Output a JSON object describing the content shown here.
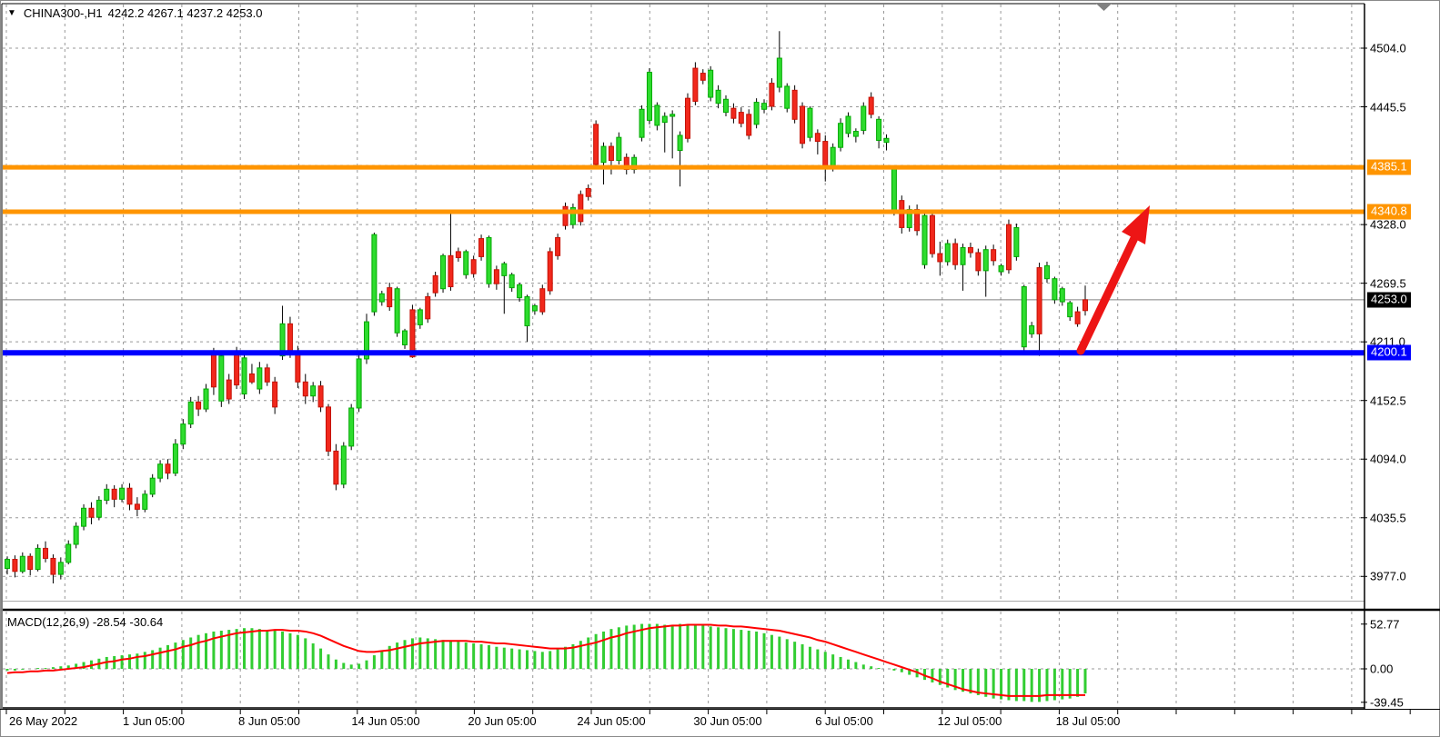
{
  "header": {
    "symbol_period": "CHINA300-,H1",
    "ohlc_text": "4242.2 4267.1 4237.2 4253.0",
    "dropdown_icon": "symbol-marker"
  },
  "price_axis": {
    "labels": [
      "4504.0",
      "4445.5",
      "4328.0",
      "4269.5",
      "4211.0",
      "4152.5",
      "4094.0",
      "4035.5",
      "3977.0"
    ],
    "gridline_prices": [
      4504.0,
      4445.5,
      4387.0,
      4328.0,
      4269.5,
      4211.0,
      4152.5,
      4094.0,
      4035.5,
      3977.0
    ]
  },
  "time_axis": {
    "labels": [
      "26 May 2022",
      "1 Jun 05:00",
      "8 Jun 05:00",
      "14 Jun 05:00",
      "20 Jun 05:00",
      "24 Jun 05:00",
      "30 Jun 05:00",
      "6 Jul 05:00",
      "12 Jul 05:00",
      "18 Jul 05:00"
    ]
  },
  "horizontal_lines": [
    {
      "name": "resistance-upper",
      "price": 4385.1,
      "label": "4385.1",
      "color": "#FF9500",
      "thickness": 5
    },
    {
      "name": "resistance-lower",
      "price": 4340.8,
      "label": "4340.8",
      "color": "#FF9500",
      "thickness": 5
    },
    {
      "name": "support",
      "price": 4200.1,
      "label": "4200.1",
      "color": "#0000FF",
      "thickness": 6
    }
  ],
  "current_price": {
    "value": "4253.0",
    "price": 4253.0,
    "badge_bg": "#000000",
    "line_color": "#808080"
  },
  "annotation_arrow": {
    "direction": "up",
    "color": "#ED1515"
  },
  "macd_panel": {
    "label": "MACD(12,26,9) -28.54 -30.64",
    "scale_labels": [
      "52.77",
      "0.00",
      "-39.45"
    ],
    "histogram_color": "#32CD32",
    "signal_color": "#FF0000"
  },
  "colors": {
    "bull_body": "#2EDC2E",
    "bull_border": "#00A800",
    "bear_body": "#F1281C",
    "bear_border": "#C41004",
    "wick": "#000000",
    "grid": "#989898",
    "axis": "#000000"
  },
  "chart_data": {
    "type": "candlestick",
    "symbol": "CHINA300-",
    "timeframe": "H1",
    "title": "CHINA300-,H1",
    "current_bar": {
      "open": 4242.2,
      "high": 4267.1,
      "low": 4237.2,
      "close": 4253.0
    },
    "y_axis": {
      "min": 3955,
      "max": 4525,
      "ticks": [
        4504.0,
        4445.5,
        4387.0,
        4328.0,
        4269.5,
        4211.0,
        4152.5,
        4094.0,
        4035.5,
        3977.0
      ]
    },
    "x_labels": [
      "26 May 2022",
      "1 Jun 05:00",
      "8 Jun 05:00",
      "14 Jun 05:00",
      "20 Jun 05:00",
      "24 Jun 05:00",
      "30 Jun 05:00",
      "6 Jul 05:00",
      "12 Jul 05:00",
      "18 Jul 05:00"
    ],
    "levels": {
      "resistance": [
        4385.1,
        4340.8
      ],
      "support": [
        4200.1
      ],
      "bid": 4253.0
    },
    "candles": [
      [
        3985,
        3997,
        3979,
        3994
      ],
      [
        3994,
        3998,
        3976,
        3982
      ],
      [
        3982,
        4001,
        3980,
        3997
      ],
      [
        3997,
        4000,
        3978,
        3984
      ],
      [
        3984,
        4009,
        3982,
        4005
      ],
      [
        4005,
        4012,
        3991,
        3995
      ],
      [
        3995,
        3999,
        3970,
        3979
      ],
      [
        3979,
        3996,
        3974,
        3991
      ],
      [
        3991,
        4013,
        3989,
        4009
      ],
      [
        4009,
        4031,
        4005,
        4027
      ],
      [
        4027,
        4049,
        4023,
        4045
      ],
      [
        4045,
        4051,
        4029,
        4036
      ],
      [
        4036,
        4057,
        4033,
        4053
      ],
      [
        4053,
        4069,
        4049,
        4064
      ],
      [
        4064,
        4068,
        4046,
        4054
      ],
      [
        4054,
        4069,
        4051,
        4065
      ],
      [
        4065,
        4070,
        4043,
        4049
      ],
      [
        4049,
        4056,
        4037,
        4044
      ],
      [
        4044,
        4063,
        4041,
        4059
      ],
      [
        4059,
        4079,
        4056,
        4075
      ],
      [
        4075,
        4093,
        4071,
        4089
      ],
      [
        4089,
        4094,
        4074,
        4080
      ],
      [
        4080,
        4114,
        4077,
        4109
      ],
      [
        4109,
        4134,
        4104,
        4129
      ],
      [
        4129,
        4156,
        4125,
        4151
      ],
      [
        4151,
        4157,
        4137,
        4144
      ],
      [
        4144,
        4169,
        4141,
        4164
      ],
      [
        4198,
        4205,
        4158,
        4166
      ],
      [
        4152,
        4200,
        4146,
        4197
      ],
      [
        4173,
        4179,
        4149,
        4154
      ],
      [
        4200,
        4206,
        4164,
        4168
      ],
      [
        4159,
        4201,
        4154,
        4195
      ],
      [
        4179,
        4189,
        4169,
        4171
      ],
      [
        4164,
        4191,
        4159,
        4185
      ],
      [
        4185,
        4189,
        4167,
        4171
      ],
      [
        4171,
        4176,
        4139,
        4146
      ],
      [
        4197,
        4247,
        4193,
        4229
      ],
      [
        4229,
        4236,
        4195,
        4200
      ],
      [
        4200,
        4207,
        4165,
        4171
      ],
      [
        4171,
        4179,
        4149,
        4157
      ],
      [
        4157,
        4171,
        4151,
        4167
      ],
      [
        4167,
        4172,
        4141,
        4146
      ],
      [
        4146,
        4149,
        4097,
        4102
      ],
      [
        4102,
        4109,
        4063,
        4069
      ],
      [
        4069,
        4111,
        4065,
        4107
      ],
      [
        4107,
        4149,
        4103,
        4145
      ],
      [
        4145,
        4199,
        4141,
        4194
      ],
      [
        4194,
        4239,
        4189,
        4231
      ],
      [
        4241,
        4320,
        4237,
        4318
      ],
      [
        4251,
        4262,
        4247,
        4259
      ],
      [
        4265,
        4270,
        4242,
        4246
      ],
      [
        4220,
        4266,
        4216,
        4264
      ],
      [
        4208,
        4224,
        4204,
        4222
      ],
      [
        4243,
        4248,
        4195,
        4196
      ],
      [
        4228,
        4245,
        4224,
        4243
      ],
      [
        4256,
        4260,
        4230,
        4234
      ],
      [
        4277,
        4281,
        4256,
        4260
      ],
      [
        4264,
        4299,
        4260,
        4297
      ],
      [
        4297,
        4339,
        4262,
        4266
      ],
      [
        4301,
        4305,
        4291,
        4295
      ],
      [
        4278,
        4303,
        4274,
        4301
      ],
      [
        4293,
        4297,
        4275,
        4279
      ],
      [
        4314,
        4318,
        4292,
        4296
      ],
      [
        4269,
        4317,
        4265,
        4315
      ],
      [
        4283,
        4287,
        4263,
        4269
      ],
      [
        4277,
        4291,
        4239,
        4289
      ],
      [
        4265,
        4280,
        4261,
        4278
      ],
      [
        4255,
        4270,
        4251,
        4268
      ],
      [
        4227,
        4258,
        4211,
        4256
      ],
      [
        4242,
        4249,
        4238,
        4247
      ],
      [
        4264,
        4268,
        4238,
        4241
      ],
      [
        4301,
        4305,
        4258,
        4262
      ],
      [
        4315,
        4319,
        4293,
        4297
      ],
      [
        4346,
        4350,
        4323,
        4327
      ],
      [
        4328,
        4349,
        4324,
        4345
      ],
      [
        4358,
        4362,
        4327,
        4331
      ],
      [
        4364,
        4368,
        4352,
        4356
      ],
      [
        4428,
        4432,
        4384,
        4388
      ],
      [
        4390,
        4410,
        4368,
        4406
      ],
      [
        4406,
        4410,
        4378,
        4392
      ],
      [
        4392,
        4420,
        4388,
        4415
      ],
      [
        4395,
        4399,
        4378,
        4383
      ],
      [
        4383,
        4398,
        4379,
        4395
      ],
      [
        4415,
        4447,
        4411,
        4443
      ],
      [
        4432,
        4484,
        4428,
        4480
      ],
      [
        4427,
        4450,
        4422,
        4447
      ],
      [
        4430,
        4440,
        4400,
        4436
      ],
      [
        4436,
        4442,
        4394,
        4438
      ],
      [
        4402,
        4421,
        4366,
        4417
      ],
      [
        4454,
        4459,
        4410,
        4414
      ],
      [
        4484,
        4490,
        4447,
        4451
      ],
      [
        4479,
        4483,
        4468,
        4472
      ],
      [
        4455,
        4486,
        4451,
        4482
      ],
      [
        4449,
        4467,
        4444,
        4462
      ],
      [
        4440,
        4457,
        4436,
        4453
      ],
      [
        4444,
        4449,
        4429,
        4434
      ],
      [
        4440,
        4445,
        4425,
        4429
      ],
      [
        4438,
        4443,
        4413,
        4417
      ],
      [
        4428,
        4454,
        4424,
        4450
      ],
      [
        4443,
        4453,
        4439,
        4449
      ],
      [
        4469,
        4474,
        4442,
        4446
      ],
      [
        4465,
        4521,
        4460,
        4494
      ],
      [
        4444,
        4469,
        4440,
        4466
      ],
      [
        4462,
        4467,
        4429,
        4433
      ],
      [
        4446,
        4450,
        4404,
        4409
      ],
      [
        4415,
        4446,
        4411,
        4444
      ],
      [
        4419,
        4423,
        4398,
        4411
      ],
      [
        4411,
        4417,
        4371,
        4385
      ],
      [
        4385,
        4409,
        4381,
        4405
      ],
      [
        4405,
        4434,
        4401,
        4429
      ],
      [
        4419,
        4440,
        4415,
        4436
      ],
      [
        4416,
        4424,
        4410,
        4421
      ],
      [
        4422,
        4450,
        4418,
        4446
      ],
      [
        4455,
        4460,
        4434,
        4438
      ],
      [
        4412,
        4436,
        4404,
        4433
      ],
      [
        4410,
        4418,
        4402,
        4414
      ],
      [
        4341,
        4386,
        4337,
        4384
      ],
      [
        4352,
        4357,
        4319,
        4325
      ],
      [
        4325,
        4347,
        4321,
        4343
      ],
      [
        4343,
        4348,
        4317,
        4322
      ],
      [
        4288,
        4341,
        4284,
        4337
      ],
      [
        4337,
        4341,
        4295,
        4299
      ],
      [
        4299,
        4311,
        4277,
        4291
      ],
      [
        4291,
        4313,
        4287,
        4309
      ],
      [
        4309,
        4314,
        4283,
        4288
      ],
      [
        4288,
        4309,
        4262,
        4305
      ],
      [
        4305,
        4310,
        4295,
        4300
      ],
      [
        4300,
        4304,
        4277,
        4282
      ],
      [
        4282,
        4307,
        4256,
        4303
      ],
      [
        4303,
        4308,
        4287,
        4292
      ],
      [
        4281,
        4289,
        4277,
        4287
      ],
      [
        4328,
        4333,
        4279,
        4283
      ],
      [
        4296,
        4329,
        4292,
        4325
      ],
      [
        4206,
        4268,
        4202,
        4266
      ],
      [
        4219,
        4231,
        4215,
        4227
      ],
      [
        4285,
        4290,
        4197,
        4219
      ],
      [
        4274,
        4291,
        4270,
        4287
      ],
      [
        4253,
        4276,
        4249,
        4274
      ],
      [
        4251,
        4266,
        4247,
        4264
      ],
      [
        4236,
        4252,
        4232,
        4250
      ],
      [
        4241,
        4246,
        4226,
        4229
      ],
      [
        4242.2,
        4267.1,
        4237.2,
        4253.0,
        1
      ]
    ],
    "macd": {
      "parameters": "12,26,9",
      "current_macd": -28.54,
      "current_signal": -30.64,
      "scale": {
        "max": 52.77,
        "zero": 0.0,
        "min": -39.45
      },
      "histogram": [
        -2,
        -2,
        -1,
        0,
        1,
        1,
        2,
        3,
        4,
        6,
        8,
        10,
        12,
        14,
        15,
        16,
        17,
        18,
        20,
        22,
        25,
        28,
        31,
        34,
        37,
        40,
        42,
        44,
        45,
        46,
        47,
        48,
        48,
        47,
        46,
        45,
        44,
        42,
        40,
        36,
        30,
        24,
        17,
        11,
        7,
        5,
        6,
        10,
        16,
        22,
        27,
        31,
        34,
        36,
        37,
        36,
        35,
        34,
        33,
        32,
        31,
        30,
        29,
        28,
        26,
        25,
        24,
        23,
        22,
        21,
        20,
        21,
        23,
        26,
        29,
        33,
        37,
        41,
        44,
        47,
        49,
        51,
        52,
        53,
        53,
        53,
        52,
        52,
        53,
        52,
        52,
        51,
        50,
        49,
        48,
        47,
        46,
        45,
        44,
        42,
        40,
        38,
        35,
        32,
        29,
        26,
        23,
        20,
        17,
        14,
        11,
        8,
        5,
        3,
        1,
        0,
        -2,
        -4,
        -7,
        -10,
        -13,
        -16,
        -19,
        -22,
        -25,
        -27,
        -29,
        -31,
        -33,
        -35,
        -36,
        -37,
        -38,
        -38,
        -39,
        -39,
        -38,
        -37,
        -36,
        -35,
        -33,
        -29
      ],
      "signal": [
        -5,
        -4,
        -4,
        -3,
        -3,
        -2,
        -2,
        -1,
        0,
        1,
        2,
        4,
        6,
        8,
        9,
        11,
        12,
        14,
        15,
        17,
        19,
        21,
        23,
        26,
        28,
        31,
        33,
        36,
        38,
        40,
        42,
        43,
        44,
        45,
        45,
        46,
        46,
        45,
        45,
        44,
        42,
        39,
        35,
        31,
        27,
        24,
        21,
        20,
        20,
        21,
        22,
        24,
        26,
        28,
        30,
        31,
        32,
        33,
        33,
        33,
        33,
        32,
        32,
        31,
        30,
        30,
        29,
        28,
        27,
        26,
        25,
        24,
        24,
        24,
        25,
        27,
        29,
        31,
        34,
        37,
        39,
        42,
        44,
        46,
        48,
        49,
        50,
        51,
        51,
        52,
        52,
        52,
        52,
        51,
        51,
        50,
        50,
        49,
        48,
        47,
        46,
        45,
        43,
        41,
        39,
        37,
        34,
        32,
        29,
        26,
        23,
        20,
        17,
        14,
        11,
        8,
        5,
        2,
        -1,
        -4,
        -8,
        -11,
        -15,
        -18,
        -21,
        -24,
        -26,
        -28,
        -29,
        -30,
        -31,
        -32,
        -32,
        -32,
        -32,
        -32,
        -31,
        -31,
        -31,
        -31,
        -31,
        -31
      ]
    }
  }
}
